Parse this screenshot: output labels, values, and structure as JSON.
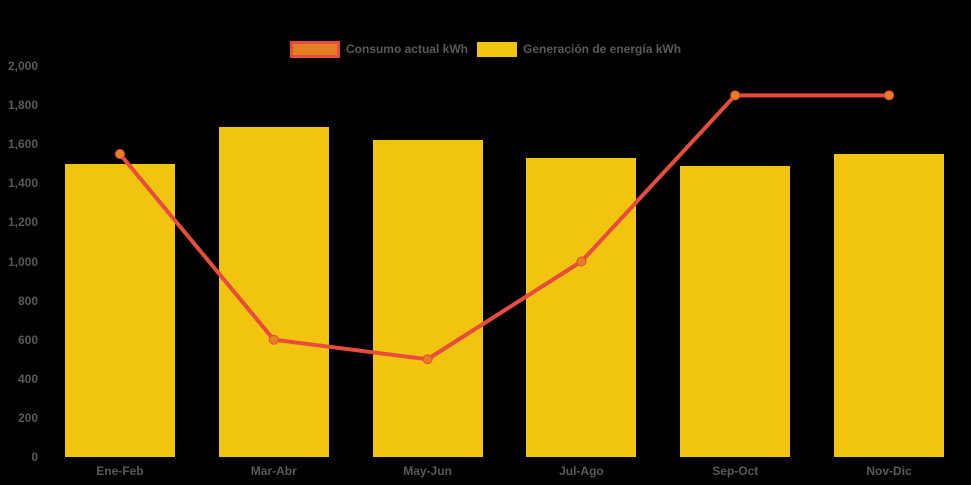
{
  "chart_data": {
    "type": "combo-bar-line",
    "categories": [
      "Ene-Feb",
      "Mar-Abr",
      "May-Jun",
      "Jul-Ago",
      "Sep-Oct",
      "Nov-Dic"
    ],
    "series": [
      {
        "name": "Consumo actual kWh",
        "type": "line",
        "values": [
          1550,
          600,
          500,
          1000,
          1850,
          1850
        ],
        "color": "#e74c3c",
        "marker_color": "#e67e22"
      },
      {
        "name": "Generación de energía kWh",
        "type": "bar",
        "values": [
          1500,
          1690,
          1620,
          1530,
          1490,
          1550
        ],
        "color": "#f1c40f"
      }
    ],
    "ylim": [
      0,
      2000
    ],
    "ytick_step": 200,
    "ytick_labels": [
      "0",
      "200",
      "400",
      "600",
      "800",
      "1,000",
      "1,200",
      "1,400",
      "1,600",
      "1,800",
      "2,000"
    ],
    "legend_position": "top",
    "grid": false,
    "background_color": "#000000",
    "text_color": "#595959"
  },
  "legend": {
    "items": [
      {
        "label": "Consumo actual kWh"
      },
      {
        "label": "Generación de energía kWh"
      }
    ]
  }
}
